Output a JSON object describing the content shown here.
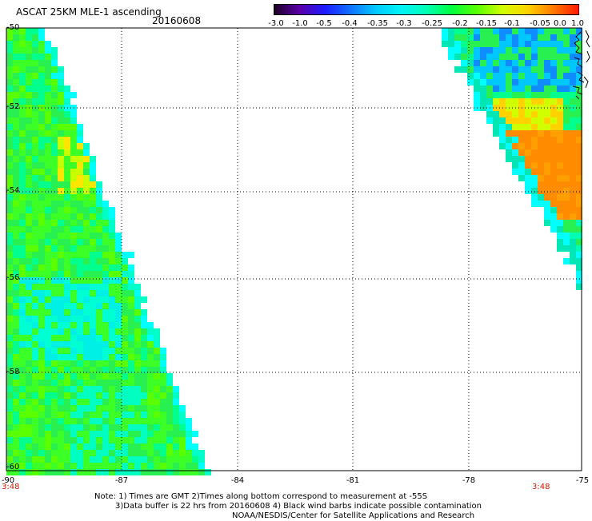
{
  "title": "ASCAT 25KM MLE-1 ascending",
  "date": "20160608",
  "colorbar": {
    "labels": [
      "-3.0",
      "-1.0",
      "-0.5",
      "-0.4",
      "-0.35",
      "-0.3",
      "-0.25",
      "-0.2",
      "-0.15",
      "-0.1",
      "-0.05",
      "0.0",
      "1.0"
    ],
    "colors": [
      "#200028",
      "#5a00a8",
      "#1b1bff",
      "#0f72ff",
      "#00c8ff",
      "#00f5f5",
      "#00ffb4",
      "#00ff3c",
      "#5aff00",
      "#d2ff00",
      "#ffd200",
      "#ff7a00",
      "#ff1a00"
    ]
  },
  "axes": {
    "lat_labels": [
      "-50",
      "-52",
      "-54",
      "-56",
      "-58",
      "-60"
    ],
    "lon_labels": [
      "-90",
      "-87",
      "-84",
      "-81",
      "-78",
      "-75"
    ],
    "lon_range": [
      -90,
      -75
    ],
    "lat_range": [
      -60,
      -50
    ]
  },
  "times": {
    "left": "3:48",
    "right": "3:48"
  },
  "notes": [
    "Note: 1) Times are GMT 2)Times along bottom correspond to measurement at -55S",
    "3)Data buffer is 22 hrs from 20160608 4) Black wind barbs indicate possible contamination",
    "NOAA/NESDIS/Center for Satellite Applications and Research"
  ]
}
